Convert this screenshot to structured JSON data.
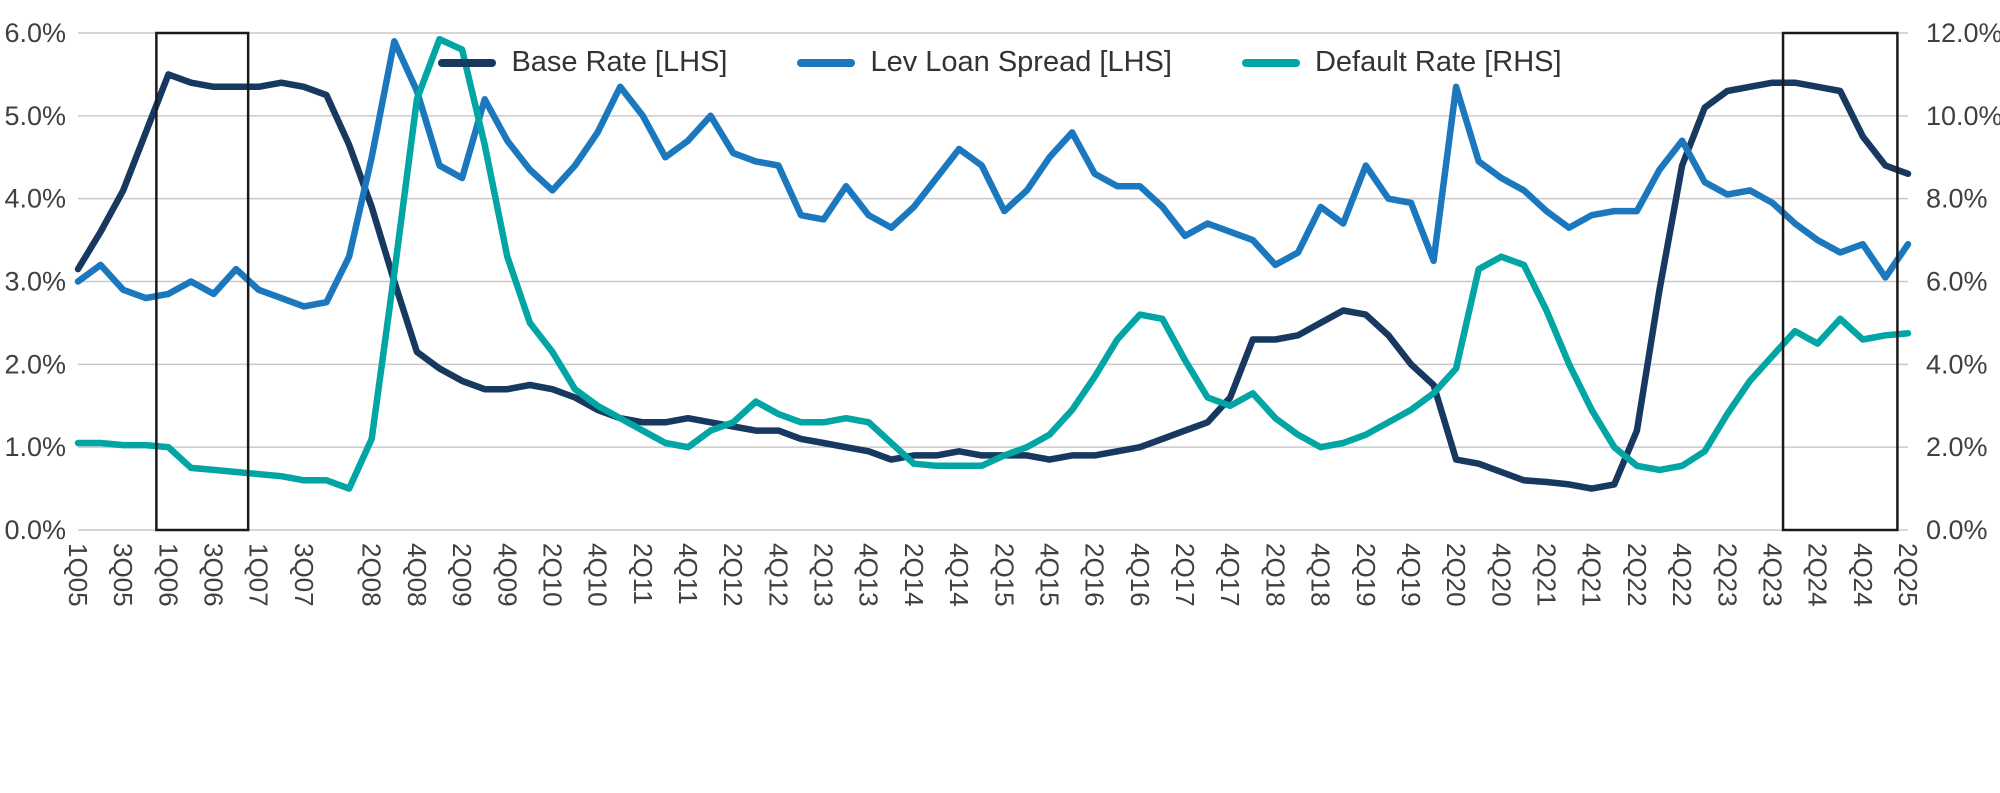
{
  "chart_data": {
    "type": "line",
    "title": "",
    "grid": true,
    "legend_position": "top-center",
    "colors": {
      "base_rate": "#17395f",
      "lev_loan_spread": "#1b78be",
      "default_rate": "#00a5a4",
      "grid": "#c9c9c9",
      "axis_text": "#404040",
      "highlight_box": "#1a1a1a",
      "background": "#ffffff"
    },
    "left_axis": {
      "min": 0,
      "max": 6,
      "step": 1,
      "tick_labels": [
        "0.0%",
        "1.0%",
        "2.0%",
        "3.0%",
        "4.0%",
        "5.0%",
        "6.0%"
      ]
    },
    "right_axis": {
      "min": 0,
      "max": 12,
      "step": 2,
      "tick_labels": [
        "0.0%",
        "2.0%",
        "4.0%",
        "6.0%",
        "8.0%",
        "10.0%",
        "12.0%"
      ]
    },
    "categories": [
      "1Q05",
      "2Q05",
      "3Q05",
      "4Q05",
      "1Q06",
      "2Q06",
      "3Q06",
      "4Q06",
      "1Q07",
      "2Q07",
      "3Q07",
      "4Q07",
      "1Q08",
      "2Q08",
      "3Q08",
      "4Q08",
      "1Q09",
      "2Q09",
      "3Q09",
      "4Q09",
      "1Q10",
      "2Q10",
      "3Q10",
      "4Q10",
      "1Q11",
      "2Q11",
      "3Q11",
      "4Q11",
      "1Q12",
      "2Q12",
      "3Q12",
      "4Q12",
      "1Q13",
      "2Q13",
      "3Q13",
      "4Q13",
      "1Q14",
      "2Q14",
      "3Q14",
      "4Q14",
      "1Q15",
      "2Q15",
      "3Q15",
      "4Q15",
      "1Q16",
      "2Q16",
      "3Q16",
      "4Q16",
      "1Q17",
      "2Q17",
      "3Q17",
      "4Q17",
      "1Q18",
      "2Q18",
      "3Q18",
      "4Q18",
      "1Q19",
      "2Q19",
      "3Q19",
      "4Q19",
      "1Q20",
      "2Q20",
      "3Q20",
      "4Q20",
      "1Q21",
      "2Q21",
      "3Q21",
      "4Q21",
      "1Q22",
      "2Q22",
      "3Q22",
      "4Q22",
      "1Q23",
      "2Q23",
      "3Q23",
      "4Q23",
      "1Q24",
      "2Q24",
      "3Q24",
      "4Q24",
      "1Q25",
      "2Q25"
    ],
    "x_tick_labels": [
      "1Q05",
      "3Q05",
      "1Q06",
      "3Q06",
      "1Q07",
      "3Q07",
      "2Q08",
      "4Q08",
      "2Q09",
      "4Q09",
      "2Q10",
      "4Q10",
      "2Q11",
      "4Q11",
      "2Q12",
      "4Q12",
      "2Q13",
      "4Q13",
      "2Q14",
      "4Q14",
      "2Q15",
      "4Q15",
      "2Q16",
      "4Q16",
      "2Q17",
      "4Q17",
      "2Q18",
      "4Q18",
      "2Q19",
      "4Q19",
      "2Q20",
      "4Q20",
      "2Q21",
      "4Q21",
      "2Q22",
      "4Q22",
      "2Q23",
      "4Q23",
      "2Q24",
      "4Q24",
      "2Q25"
    ],
    "series": [
      {
        "id": "base-rate",
        "name": "Base Rate [LHS]",
        "axis": "left",
        "color": "#17395f",
        "values": [
          3.15,
          3.6,
          4.1,
          4.8,
          5.5,
          5.4,
          5.35,
          5.35,
          5.35,
          5.4,
          5.35,
          5.25,
          4.65,
          3.9,
          3.0,
          2.15,
          1.95,
          1.8,
          1.7,
          1.7,
          1.75,
          1.7,
          1.6,
          1.45,
          1.35,
          1.3,
          1.3,
          1.35,
          1.3,
          1.25,
          1.2,
          1.2,
          1.1,
          1.05,
          1.0,
          0.95,
          0.85,
          0.9,
          0.9,
          0.95,
          0.9,
          0.9,
          0.9,
          0.85,
          0.9,
          0.9,
          0.95,
          1.0,
          1.1,
          1.2,
          1.3,
          1.6,
          2.3,
          2.3,
          2.35,
          2.5,
          2.65,
          2.6,
          2.35,
          2.0,
          1.75,
          0.85,
          0.8,
          0.7,
          0.6,
          0.58,
          0.55,
          0.5,
          0.55,
          1.2,
          2.9,
          4.4,
          5.1,
          5.3,
          5.35,
          5.4,
          5.4,
          5.35,
          5.3,
          4.75,
          4.4,
          4.3
        ]
      },
      {
        "id": "lev-loan-spread",
        "name": "Lev Loan Spread [LHS]",
        "axis": "left",
        "color": "#1b78be",
        "values": [
          3.0,
          3.2,
          2.9,
          2.8,
          2.85,
          3.0,
          2.85,
          3.15,
          2.9,
          2.8,
          2.7,
          2.75,
          3.3,
          4.5,
          5.9,
          5.3,
          4.4,
          4.25,
          5.2,
          4.7,
          4.35,
          4.1,
          4.4,
          4.8,
          5.35,
          5.0,
          4.5,
          4.7,
          5.0,
          4.55,
          4.45,
          4.4,
          3.8,
          3.75,
          4.15,
          3.8,
          3.65,
          3.9,
          4.25,
          4.6,
          4.4,
          3.85,
          4.1,
          4.5,
          4.8,
          4.3,
          4.15,
          4.15,
          3.9,
          3.55,
          3.7,
          3.6,
          3.5,
          3.2,
          3.35,
          3.9,
          3.7,
          4.4,
          4.0,
          3.95,
          3.25,
          5.35,
          4.45,
          4.25,
          4.1,
          3.85,
          3.65,
          3.8,
          3.85,
          3.85,
          4.35,
          4.7,
          4.2,
          4.05,
          4.1,
          3.95,
          3.7,
          3.5,
          3.35,
          3.45,
          3.05,
          3.45
        ]
      },
      {
        "id": "default-rate",
        "name": "Default Rate [RHS]",
        "axis": "right",
        "color": "#00a5a4",
        "values": [
          2.1,
          2.1,
          2.05,
          2.05,
          2.0,
          1.5,
          1.45,
          1.4,
          1.35,
          1.3,
          1.2,
          1.2,
          1.0,
          2.2,
          6.2,
          10.4,
          11.85,
          11.6,
          9.3,
          6.6,
          5.0,
          4.3,
          3.4,
          3.0,
          2.7,
          2.4,
          2.1,
          2.0,
          2.4,
          2.6,
          3.1,
          2.8,
          2.6,
          2.6,
          2.7,
          2.6,
          2.1,
          1.6,
          1.55,
          1.55,
          1.55,
          1.8,
          2.0,
          2.3,
          2.9,
          3.7,
          4.6,
          5.2,
          5.1,
          4.1,
          3.2,
          3.0,
          3.3,
          2.7,
          2.3,
          2.0,
          2.1,
          2.3,
          2.6,
          2.9,
          3.3,
          3.9,
          6.3,
          6.6,
          6.4,
          5.3,
          4.0,
          2.9,
          2.0,
          1.55,
          1.45,
          1.55,
          1.9,
          2.8,
          3.6,
          4.2,
          4.8,
          4.5,
          5.1,
          4.6,
          4.7,
          4.75
        ]
      }
    ],
    "highlights": [
      {
        "start": "1Q06",
        "end": "4Q06"
      },
      {
        "start": "1Q24",
        "end": "1Q25"
      }
    ]
  }
}
